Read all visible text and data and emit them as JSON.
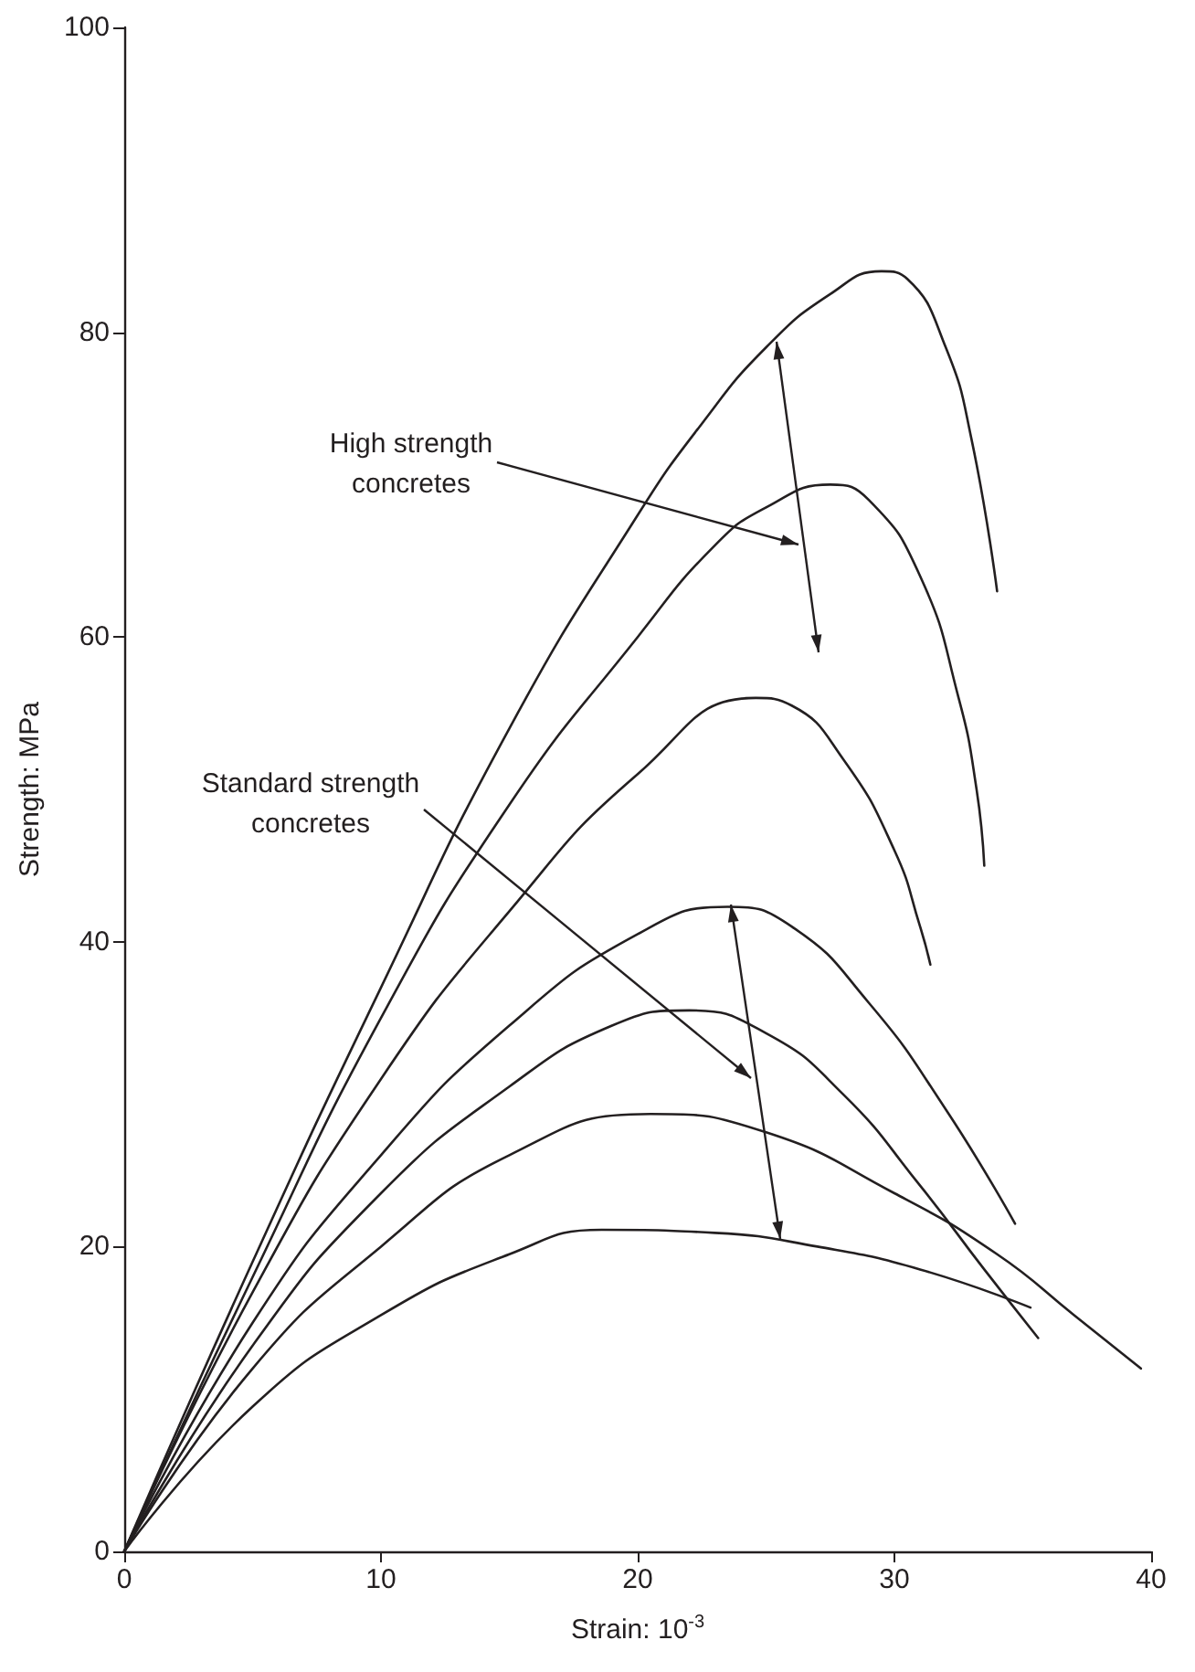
{
  "chart_data": {
    "type": "line",
    "xlabel": "Strain: 10$^{-3}$",
    "ylabel": "Strength: MPa",
    "xlim": [
      0,
      40
    ],
    "xticks": [
      0,
      10,
      20,
      30,
      40
    ],
    "ylim": [
      0,
      100
    ],
    "yticks": [
      0,
      20,
      40,
      60,
      80,
      100
    ],
    "grid": false,
    "marker": "none",
    "line_style": "solid",
    "annotations": [
      "High strength\nconcretes",
      "Standard strength\nconcretes"
    ],
    "series": [
      {
        "color": "#231f20",
        "x": [
          0,
          5,
          10,
          15,
          20,
          22.5,
          25,
          27.5,
          29.5,
          30.5,
          32,
          33,
          34
        ],
        "values": [
          0,
          19,
          37,
          54,
          68,
          74,
          79,
          82.5,
          84,
          83.5,
          79,
          73,
          63
        ]
      },
      {
        "color": "#231f20",
        "x": [
          0,
          5,
          10,
          15,
          20,
          23,
          25,
          27.5,
          29,
          31,
          32.5,
          33.2,
          33.5
        ],
        "values": [
          0,
          18,
          35,
          49,
          60,
          66,
          68.5,
          70,
          69,
          64,
          56,
          50,
          45
        ]
      },
      {
        "color": "#231f20",
        "x": [
          0,
          5,
          10,
          15,
          20,
          24.6,
          26,
          28,
          30,
          31,
          31.4
        ],
        "values": [
          0,
          17,
          31,
          42,
          51,
          56,
          55.5,
          52,
          46,
          41,
          38.5
        ]
      },
      {
        "color": "#231f20",
        "x": [
          0,
          5,
          10,
          15,
          20,
          23.5,
          26,
          29,
          32,
          34.7
        ],
        "values": [
          0,
          15,
          26,
          34.5,
          40.5,
          42.3,
          41,
          36,
          29,
          21.5
        ]
      },
      {
        "color": "#231f20",
        "x": [
          0,
          5,
          10,
          15,
          19,
          22,
          25,
          28,
          31,
          33.5,
          35.6
        ],
        "values": [
          0,
          13.5,
          23.5,
          30.5,
          34.5,
          35.5,
          34,
          30,
          24,
          18.5,
          14
        ]
      },
      {
        "color": "#231f20",
        "x": [
          0,
          5,
          10,
          15,
          20.5,
          25,
          30,
          34,
          37,
          39.6
        ],
        "values": [
          0,
          12,
          20,
          26,
          28.7,
          27.5,
          23.5,
          19.5,
          15.5,
          12
        ]
      },
      {
        "color": "#231f20",
        "x": [
          0,
          5,
          10,
          15,
          18.6,
          23,
          27,
          31,
          35.3
        ],
        "values": [
          0,
          9.5,
          15.5,
          19.5,
          21.1,
          20.9,
          20,
          18.5,
          16
        ]
      }
    ]
  }
}
